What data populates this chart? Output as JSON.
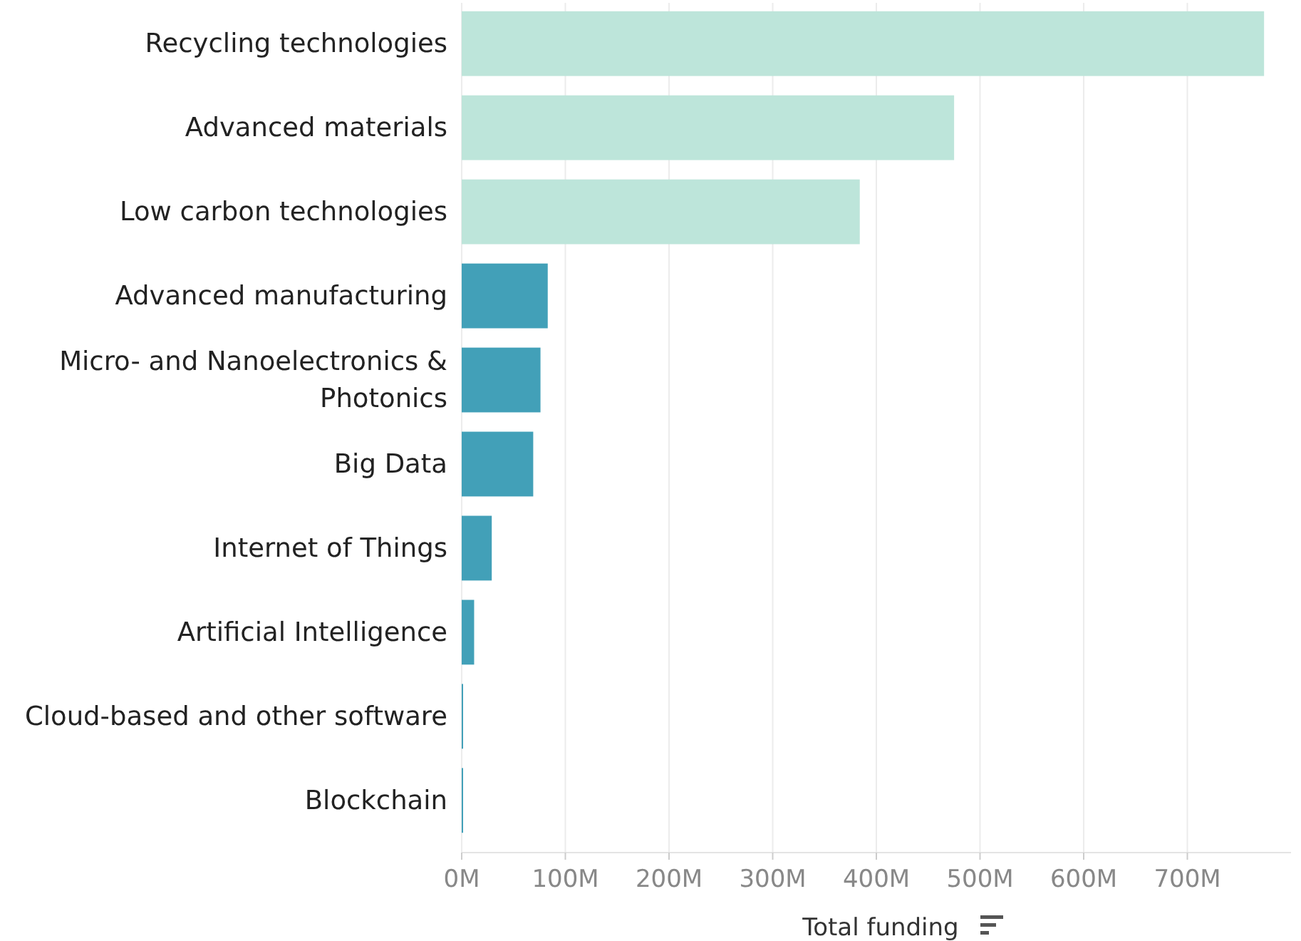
{
  "chart_data": {
    "type": "bar",
    "orientation": "horizontal",
    "xlabel": "Total funding",
    "categories": [
      "Recycling technologies",
      "Advanced materials",
      "Low carbon technologies",
      "Advanced manufacturing",
      "Micro- and Nanoelectronics & Photonics",
      "Big Data",
      "Internet of Things",
      "Artificial Intelligence",
      "Cloud-based and other software",
      "Blockchain"
    ],
    "values": [
      774,
      475,
      384,
      83,
      76,
      69,
      29,
      12,
      1,
      1
    ],
    "colors": [
      "#bde5da",
      "#bde5da",
      "#bde5da",
      "#42a0b8",
      "#42a0b8",
      "#42a0b8",
      "#42a0b8",
      "#42a0b8",
      "#42a0b8",
      "#42a0b8"
    ],
    "xlim": [
      0,
      800
    ],
    "xticks": [
      {
        "value": 0,
        "label": "0M"
      },
      {
        "value": 100,
        "label": "100M"
      },
      {
        "value": 200,
        "label": "200M"
      },
      {
        "value": 300,
        "label": "300M"
      },
      {
        "value": 400,
        "label": "400M"
      },
      {
        "value": 500,
        "label": "500M"
      },
      {
        "value": 600,
        "label": "600M"
      },
      {
        "value": 700,
        "label": "700M"
      }
    ],
    "grid": "x"
  }
}
